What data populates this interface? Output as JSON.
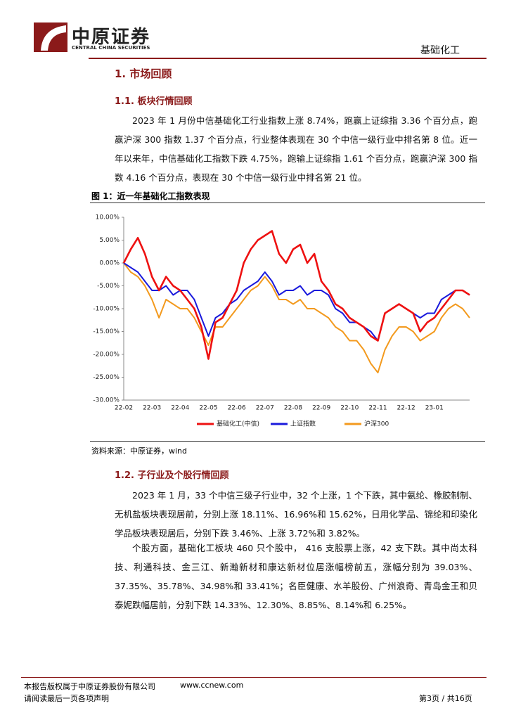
{
  "header": {
    "company_cn": "中原证券",
    "company_en": "CENTRAL CHINA SECURITIES",
    "industry": "基础化工"
  },
  "section1": {
    "title": "1. 市场回顾",
    "sub1": {
      "title": "1.1. 板块行情回顾",
      "paragraph": "2023 年 1 月份中信基础化工行业指数上涨 8.74%，跑赢上证综指 3.36 个百分点，跑赢沪深 300 指数 1.37 个百分点，行业整体表现在 30 个中信一级行业中排名第 8 位。近一年以来年，中信基础化工指数下跌 4.75%，跑输上证综指 1.61 个百分点，跑赢沪深 300 指数 4.16 个百分点，表现在 30 个中信一级行业中排名第 21 位。"
    },
    "figure": {
      "caption": "图 1：近一年基础化工指数表现",
      "source": "资料来源：中原证券，wind"
    },
    "sub2": {
      "title": "1.2. 子行业及个股行情回顾",
      "paragraphs": [
        "2023 年 1 月，33 个中信三级子行业中，32 个上涨，1 个下跌，其中氨纶、橡胶制制、无机盐板块表现居前，分别上涨 18.11%、16.96%和 15.62%，日用化学品、锦纶和印染化学品板块表现居后，分别下跌 3.46%、上涨 3.72%和 3.82%。",
        "个股方面，基础化工板块 460 只个股中， 416 支股票上涨，42 支下跌。其中尚太科技、利通科技、金三江、新瀚新材和康达新材位居涨幅榜前五，涨幅分别为 39.03%、37.35%、35.78%、34.98%和 33.41%；名臣健康、水羊股份、广州浪奇、青岛金王和贝泰妮跌幅居前，分别下跌 14.33%、12.30%、8.85%、8.14%和 6.25%。"
      ]
    }
  },
  "chart_data": {
    "type": "line",
    "categories": [
      "22-02",
      null,
      null,
      null,
      "22-03",
      null,
      null,
      null,
      "22-04",
      null,
      null,
      null,
      "22-05",
      null,
      null,
      null,
      "22-06",
      null,
      null,
      null,
      "22-07",
      null,
      null,
      null,
      "22-08",
      null,
      null,
      null,
      "22-09",
      null,
      null,
      null,
      "22-10",
      null,
      null,
      null,
      "22-11",
      null,
      null,
      null,
      "22-12",
      null,
      null,
      null,
      "23-01",
      null,
      null,
      null,
      null,
      null
    ],
    "series": [
      {
        "name": "基础化工(中信)",
        "color": "#ee1111",
        "values": [
          0,
          3,
          5.5,
          2,
          -3,
          -6,
          -3,
          -5,
          -6,
          -8,
          -10,
          -14,
          -21,
          -13,
          -12,
          -9,
          -6,
          0,
          3,
          5,
          6,
          7,
          2,
          0,
          3,
          4,
          0,
          2,
          -4,
          -6,
          -9,
          -10,
          -12,
          -13,
          -14,
          -16,
          -17,
          -11,
          -10,
          -9,
          -10,
          -11,
          -15,
          -13,
          -12,
          -10,
          -8,
          -6,
          -6,
          -7
        ]
      },
      {
        "name": "上证指数",
        "color": "#1a1adc",
        "values": [
          0,
          -1,
          -2,
          -4,
          -6,
          -6,
          -5,
          -7,
          -6,
          -6,
          -8,
          -12,
          -16,
          -12,
          -11,
          -9,
          -8,
          -6,
          -5,
          -4,
          -2,
          -4,
          -7,
          -6,
          -6,
          -5,
          -7,
          -6,
          -6,
          -7,
          -10,
          -11,
          -13,
          -13,
          -14,
          -15,
          -17,
          -11,
          -10,
          -9,
          -10,
          -11,
          -12,
          -11,
          -11,
          -8,
          -7,
          -6,
          -6,
          -7
        ]
      },
      {
        "name": "沪深300",
        "color": "#f39a1e",
        "values": [
          0,
          -2,
          -3,
          -5,
          -8,
          -12,
          -8,
          -9,
          -10,
          -10,
          -12,
          -15,
          -18,
          -14,
          -14,
          -12,
          -10,
          -8,
          -6,
          -5,
          -3,
          -5,
          -8,
          -8,
          -9,
          -8,
          -10,
          -10,
          -11,
          -12,
          -14,
          -15,
          -17,
          -17,
          -19,
          -22,
          -24,
          -19,
          -16,
          -14,
          -14,
          -15,
          -17,
          -16,
          -15,
          -12,
          -10,
          -9,
          -10,
          -12
        ]
      }
    ],
    "ylim": [
      -30,
      10
    ],
    "yticks": [
      {
        "value": 10,
        "label": "10.00%"
      },
      {
        "value": 5,
        "label": "5.00%"
      },
      {
        "value": 0,
        "label": "0.00%"
      },
      {
        "value": -5,
        "label": "-5.00%"
      },
      {
        "value": -10,
        "label": "-10.00%"
      },
      {
        "value": -15,
        "label": "-15.00%"
      },
      {
        "value": -20,
        "label": "-20.00%"
      },
      {
        "value": -25,
        "label": "-25.00%"
      },
      {
        "value": -30,
        "label": "-30.00%"
      }
    ],
    "grid": false
  },
  "footer": {
    "copyright": "本报告版权属于中原证券股份有限公司",
    "website": "www.ccnew.com",
    "disclaimer": "请阅读最后一页各项声明",
    "page": "第3页 / 共16页"
  }
}
